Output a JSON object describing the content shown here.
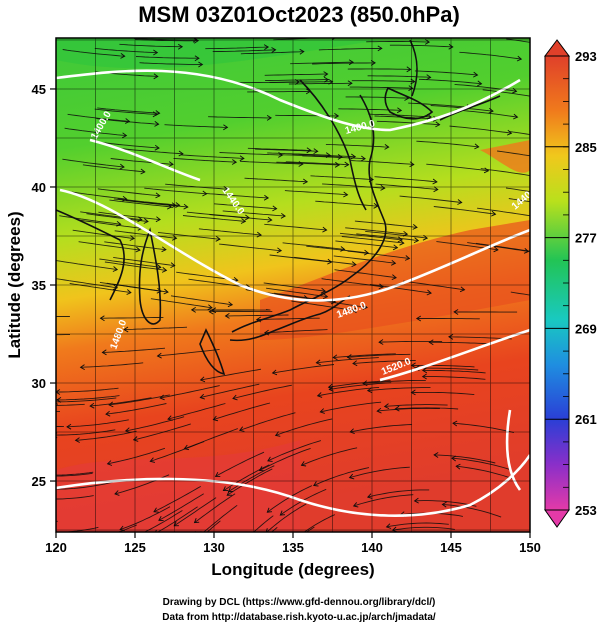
{
  "title": "MSM 03Z01Oct2023 (850.0hPa)",
  "xlabel": "Longitude (degrees)",
  "ylabel": "Latitude  (degrees)",
  "x_ticks": [
    "120",
    "125",
    "130",
    "135",
    "140",
    "145",
    "150"
  ],
  "y_ticks": [
    "25",
    "30",
    "35",
    "40",
    "45"
  ],
  "colorbar": {
    "ticks": [
      "293",
      "285",
      "277",
      "269",
      "261",
      "253"
    ],
    "min": 253,
    "max": 293,
    "colors": [
      "#e43aa8",
      "#8a2fc9",
      "#2a3fd6",
      "#1f8ee0",
      "#19c9c0",
      "#22c455",
      "#6fd630",
      "#c9e61c",
      "#f0c81c",
      "#f08a1c",
      "#e8501e",
      "#e0402a"
    ]
  },
  "contour_labels": [
    "1400.0",
    "1440.0",
    "1400.0",
    "1480.0",
    "1480.0",
    "1520.0",
    "1440.0"
  ],
  "credits": {
    "line1": "Drawing by DCL (https://www.gfd-dennou.org/library/dcl/)",
    "line2": "Data from http://database.rish.kyoto-u.ac.jp/arch/jmadata/"
  },
  "chart_data": {
    "type": "heatmap",
    "title": "MSM 03Z01Oct2023 (850.0hPa)",
    "xlabel": "Longitude (degrees)",
    "ylabel": "Latitude  (degrees)",
    "xlim": [
      120,
      150
    ],
    "ylim": [
      22.4,
      47.6
    ],
    "color_range": [
      253,
      293
    ],
    "colorbar_ticks": [
      293,
      285,
      277,
      269,
      261,
      253
    ],
    "overlays": [
      "temperature shading",
      "geopotential height contours (white)",
      "wind streamlines (black)",
      "coastlines"
    ],
    "contour_labels": [
      1400.0,
      1440.0,
      1400.0,
      1480.0,
      1480.0,
      1520.0,
      1440.0
    ],
    "grid": true
  }
}
